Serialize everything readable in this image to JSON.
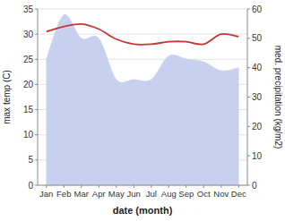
{
  "chart_data": {
    "type": "line",
    "categories": [
      "Jan",
      "Feb",
      "Mar",
      "Apr",
      "May",
      "Jun",
      "Jul",
      "Aug",
      "Sep",
      "Oct",
      "Nov",
      "Dec"
    ],
    "series": [
      {
        "type": "area",
        "color": "#c8d0f0",
        "axis": "y2",
        "values": [
          43,
          58,
          50,
          50,
          36,
          36,
          36,
          44,
          43,
          42,
          39,
          40
        ]
      },
      {
        "type": "line",
        "color": "#cc3333",
        "values": [
          30.5,
          31.5,
          32.0,
          31.0,
          29.0,
          28.0,
          28.0,
          28.5,
          28.5,
          28.0,
          30.0,
          29.5
        ]
      }
    ],
    "xlabel": "date (month)",
    "ylabel": "max temp (C)",
    "y2label": "med. precipitation (kg/m2)",
    "ylim": [
      0,
      35
    ],
    "yticks": [
      0,
      5,
      10,
      15,
      20,
      25,
      30,
      35
    ],
    "y2lim": [
      0,
      60
    ],
    "y2ticks": [
      0,
      10,
      20,
      30,
      40,
      50,
      60
    ],
    "grid": true
  }
}
